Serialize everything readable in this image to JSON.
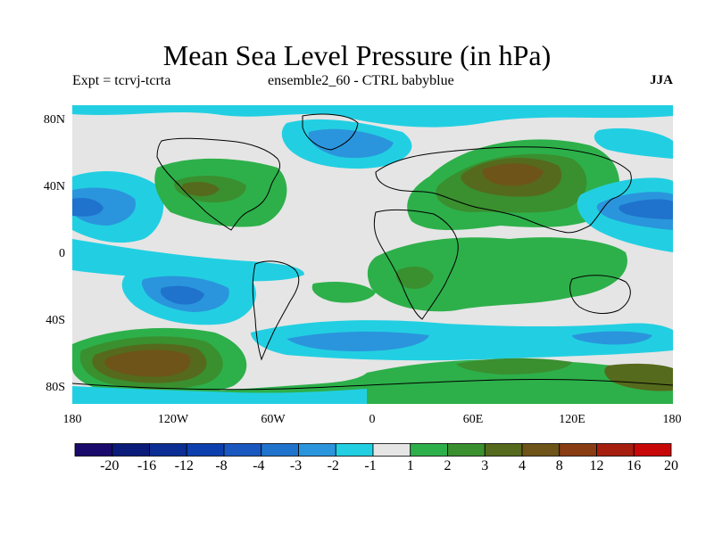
{
  "title": "Mean Sea Level Pressure (in hPa)",
  "subtitle_left": "Expt = tcrvj-tcrta",
  "subtitle_center": "ensemble2_60 - CTRL babyblue",
  "season": "JJA",
  "lat_labels": [
    "80N",
    "40N",
    "0",
    "40S",
    "80S"
  ],
  "lon_labels": [
    "180",
    "120W",
    "60W",
    "0",
    "60E",
    "120E",
    "180"
  ],
  "colorbar": {
    "labels": [
      "-20",
      "-16",
      "-12",
      "-8",
      "-4",
      "-3",
      "-2",
      "-1",
      "1",
      "2",
      "3",
      "4",
      "8",
      "12",
      "16",
      "20"
    ],
    "colors": [
      "#1a0a6b",
      "#0a1b7a",
      "#0b2d94",
      "#0d3fae",
      "#1a58c0",
      "#1f73cc",
      "#2a95dc",
      "#22cfe2",
      "#e5e5e5",
      "#2db04a",
      "#3a8f2f",
      "#556a1c",
      "#6e5418",
      "#8a3c12",
      "#a51e0e",
      "#c80808"
    ]
  },
  "colors": {
    "neutral": "#e5e5e5",
    "blue1": "#22cfe2",
    "blue2": "#2a95dc",
    "blue3": "#1f73cc",
    "blue4": "#0d3fae",
    "green1": "#2db04a",
    "green2": "#3a8f2f",
    "brown1": "#556a1c",
    "brown2": "#6e5418"
  }
}
